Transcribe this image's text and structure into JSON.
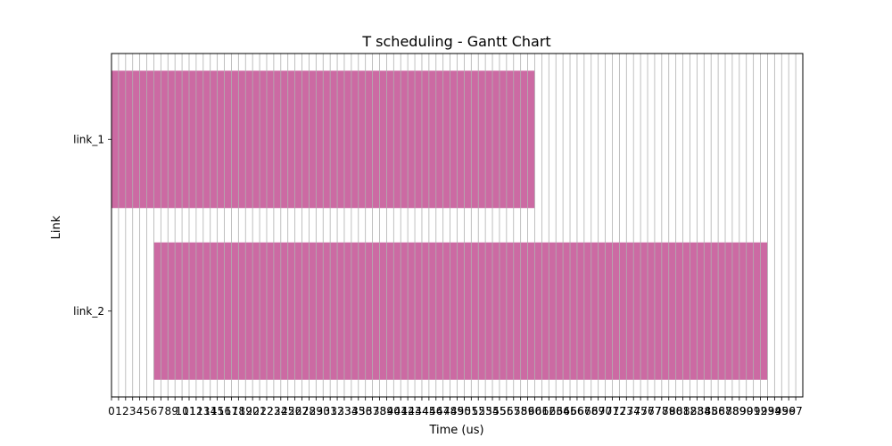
{
  "chart_data": {
    "type": "gantt",
    "title": "T scheduling - Gantt Chart",
    "xlabel": "Time (us)",
    "ylabel": "Link",
    "xlim": [
      0,
      98
    ],
    "x_ticks": [
      0,
      1,
      2,
      3,
      4,
      5,
      6,
      7,
      8,
      9,
      10,
      11,
      12,
      13,
      14,
      15,
      16,
      17,
      18,
      19,
      20,
      21,
      22,
      23,
      24,
      25,
      26,
      27,
      28,
      29,
      30,
      31,
      32,
      33,
      34,
      35,
      36,
      37,
      38,
      39,
      40,
      41,
      42,
      43,
      44,
      45,
      46,
      47,
      48,
      49,
      50,
      51,
      52,
      53,
      54,
      55,
      56,
      57,
      58,
      59,
      60,
      61,
      62,
      63,
      64,
      65,
      66,
      67,
      68,
      69,
      70,
      71,
      72,
      73,
      74,
      75,
      76,
      77,
      78,
      79,
      80,
      81,
      82,
      83,
      84,
      85,
      86,
      87,
      88,
      89,
      90,
      91,
      92,
      93,
      94,
      95,
      96,
      97
    ],
    "grid": "vertical",
    "categories": [
      "link_1",
      "link_2"
    ],
    "tasks": [
      {
        "link": "link_1",
        "start": 0,
        "end": 60
      },
      {
        "link": "link_2",
        "start": 6,
        "end": 93
      }
    ],
    "bar_color": "#cc6aa3",
    "grid_color": "#b0b0b0"
  }
}
